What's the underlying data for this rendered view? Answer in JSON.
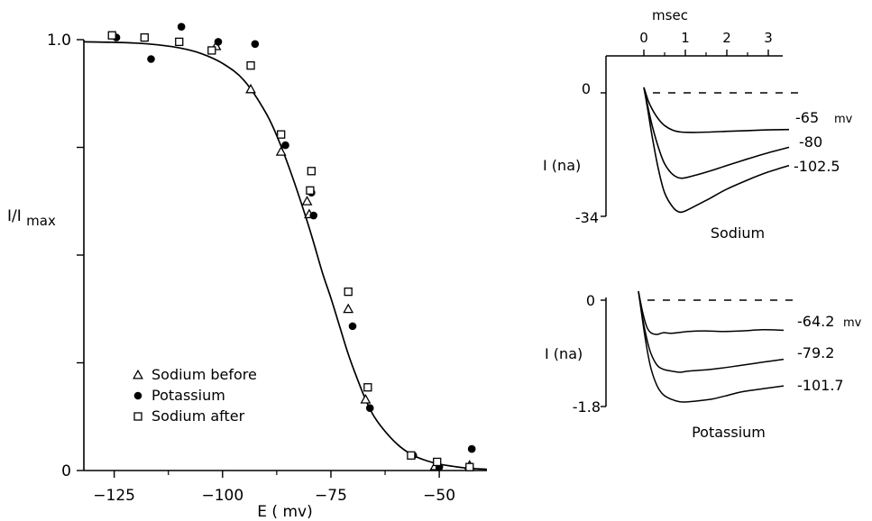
{
  "chart_data": [
    {
      "type": "scatter",
      "title": "",
      "xlabel": "E ( mv)",
      "ylabel_main": "I/I",
      "ylabel_sub": "max",
      "xlim": [
        -132,
        -39
      ],
      "ylim": [
        0,
        1.0
      ],
      "xticks": [
        -125,
        -100,
        -75,
        -50
      ],
      "xtick_labels": [
        "-125",
        "-100",
        "-75",
        "-50"
      ],
      "yticks": [
        0,
        1.0
      ],
      "ytick_labels": [
        "0",
        "1.0"
      ],
      "fit_curve": {
        "x": [
          -132,
          -126,
          -120,
          -115,
          -110,
          -105,
          -100,
          -95,
          -90,
          -87,
          -84,
          -81,
          -79,
          -77,
          -75,
          -73,
          -71,
          -69,
          -67,
          -65,
          -62,
          -59,
          -56,
          -53,
          -50,
          -47,
          -44,
          -41,
          -39
        ],
        "y": [
          0.995,
          0.994,
          0.992,
          0.988,
          0.981,
          0.968,
          0.945,
          0.905,
          0.83,
          0.765,
          0.685,
          0.595,
          0.53,
          0.46,
          0.4,
          0.335,
          0.27,
          0.215,
          0.165,
          0.125,
          0.085,
          0.055,
          0.035,
          0.023,
          0.015,
          0.01,
          0.006,
          0.004,
          0.003
        ]
      },
      "series": [
        {
          "name": "Sodium before",
          "marker": "triangle",
          "points": [
            [
              -101.5,
              0.985
            ],
            [
              -93.5,
              0.885
            ],
            [
              -86.5,
              0.74
            ],
            [
              -80.5,
              0.625
            ],
            [
              -80,
              0.595
            ],
            [
              -71,
              0.375
            ],
            [
              -67,
              0.165
            ],
            [
              -51,
              0.01
            ],
            [
              -43,
              0.012
            ]
          ]
        },
        {
          "name": "Potassium",
          "marker": "circle",
          "points": [
            [
              -124.5,
              1.005
            ],
            [
              -116.5,
              0.955
            ],
            [
              -109.5,
              1.03
            ],
            [
              -101,
              0.995
            ],
            [
              -92.5,
              0.99
            ],
            [
              -85.5,
              0.755
            ],
            [
              -79.5,
              0.645
            ],
            [
              -79,
              0.592
            ],
            [
              -70,
              0.335
            ],
            [
              -66,
              0.145
            ],
            [
              -56,
              0.035
            ],
            [
              -50,
              0.008
            ],
            [
              -42.5,
              0.05
            ]
          ]
        },
        {
          "name": "Sodium after",
          "marker": "square",
          "points": [
            [
              -125.5,
              1.01
            ],
            [
              -118,
              1.005
            ],
            [
              -110,
              0.995
            ],
            [
              -102.5,
              0.975
            ],
            [
              -93.5,
              0.94
            ],
            [
              -86.5,
              0.78
            ],
            [
              -79.5,
              0.695
            ],
            [
              -79.8,
              0.65
            ],
            [
              -71,
              0.415
            ],
            [
              -66.5,
              0.193
            ],
            [
              -56.5,
              0.035
            ],
            [
              -50.5,
              0.02
            ],
            [
              -43,
              0.008
            ]
          ]
        }
      ],
      "legend": {
        "position": "lower-left",
        "entries": [
          "Sodium before",
          "Potassium",
          "Sodium after"
        ]
      }
    },
    {
      "type": "line",
      "title": "Sodium",
      "xlabel": "msec",
      "ylabel": "I (na)",
      "xlim": [
        -0.9,
        3.6
      ],
      "ylim": [
        -34,
        0
      ],
      "xticks": [
        0,
        1,
        2,
        3
      ],
      "xtick_labels": [
        "0",
        "1",
        "2",
        "3"
      ],
      "ytick_labels": [
        "0",
        "-34"
      ],
      "baseline": 0,
      "series": [
        {
          "name": "-65 mv",
          "x": [
            0,
            0.1,
            0.2,
            0.35,
            0.5,
            0.7,
            0.9,
            1.2,
            1.6,
            2.0,
            2.5,
            3.0,
            3.5
          ],
          "y": [
            1.5,
            -2,
            -4.5,
            -7.2,
            -9,
            -10.3,
            -10.8,
            -10.9,
            -10.8,
            -10.6,
            -10.4,
            -10.2,
            -10.1
          ]
        },
        {
          "name": "-80",
          "x": [
            0,
            0.1,
            0.2,
            0.35,
            0.5,
            0.7,
            0.9,
            1.2,
            1.6,
            2.0,
            2.5,
            3.0,
            3.5
          ],
          "y": [
            1.5,
            -4,
            -9,
            -15,
            -19.5,
            -22.5,
            -23.5,
            -22.8,
            -21.5,
            -20,
            -18.2,
            -16.5,
            -15
          ]
        },
        {
          "name": "-102.5",
          "x": [
            0,
            0.1,
            0.2,
            0.35,
            0.5,
            0.7,
            0.85,
            1.0,
            1.3,
            1.6,
            2.0,
            2.5,
            3.0,
            3.5
          ],
          "y": [
            1.5,
            -5,
            -12,
            -21,
            -27.5,
            -31.5,
            -32.8,
            -32.5,
            -30.8,
            -29,
            -26.5,
            -24,
            -21.8,
            -20
          ]
        }
      ],
      "value_labels": [
        "-65",
        "mv",
        "-80",
        "-102.5"
      ]
    },
    {
      "type": "line",
      "title": "Potassium",
      "xlabel": "",
      "ylabel": "I (na)",
      "xlim": [
        -0.9,
        3.6
      ],
      "ylim": [
        -1.8,
        0
      ],
      "ytick_labels": [
        "0",
        "-1.8"
      ],
      "baseline": 0,
      "series": [
        {
          "name": "-64.2 mv",
          "x": [
            0,
            0.1,
            0.2,
            0.3,
            0.45,
            0.6,
            0.8,
            1.2,
            1.6,
            2.0,
            2.5,
            3.0,
            3.5
          ],
          "y": [
            0.15,
            -0.2,
            -0.45,
            -0.55,
            -0.58,
            -0.55,
            -0.56,
            -0.53,
            -0.52,
            -0.53,
            -0.52,
            -0.5,
            -0.51
          ]
        },
        {
          "name": "-79.2",
          "x": [
            0,
            0.1,
            0.2,
            0.3,
            0.45,
            0.6,
            0.8,
            1.0,
            1.2,
            1.6,
            2.0,
            2.5,
            3.0,
            3.5
          ],
          "y": [
            0.15,
            -0.3,
            -0.65,
            -0.9,
            -1.1,
            -1.17,
            -1.2,
            -1.22,
            -1.2,
            -1.18,
            -1.15,
            -1.1,
            -1.05,
            -1.0
          ]
        },
        {
          "name": "-101.7",
          "x": [
            0,
            0.1,
            0.2,
            0.3,
            0.45,
            0.6,
            0.8,
            1.0,
            1.2,
            1.5,
            1.8,
            2.1,
            2.5,
            3.0,
            3.5
          ],
          "y": [
            0.15,
            -0.35,
            -0.8,
            -1.15,
            -1.45,
            -1.6,
            -1.68,
            -1.72,
            -1.72,
            -1.7,
            -1.67,
            -1.62,
            -1.55,
            -1.5,
            -1.45
          ]
        }
      ],
      "value_labels": [
        "-64.2",
        "mv",
        "-79.2",
        "-101.7"
      ]
    }
  ]
}
